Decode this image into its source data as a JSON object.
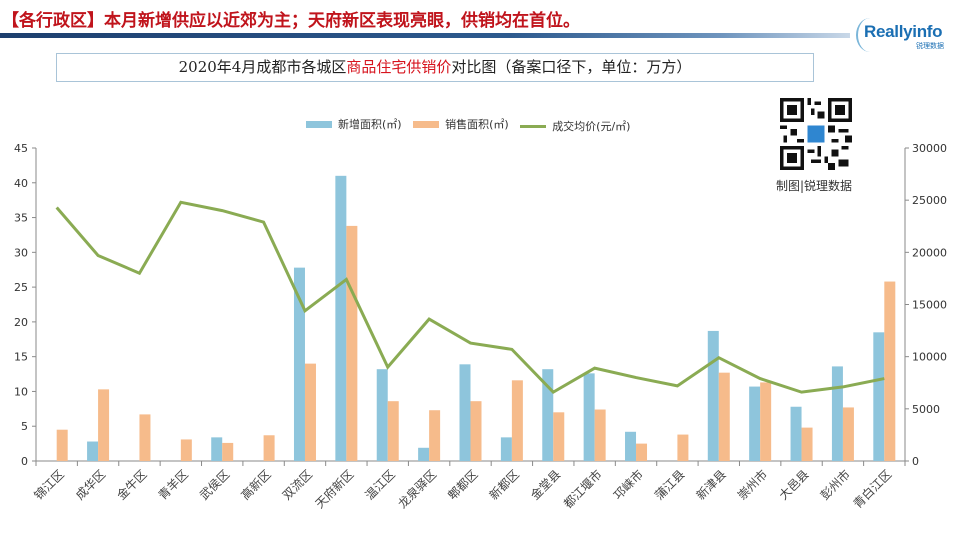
{
  "header": {
    "title": "【各行政区】本月新增供应以近郊为主；天府新区表现亮眼，供销均在首位。",
    "logo_text": "Reallyinfo",
    "logo_subtext": "锐理数据",
    "bar_color": "#1d3f6e",
    "title_color": "#c0141c"
  },
  "chart_title": {
    "prefix": "2020年4月成都市各城区",
    "highlight": "商品住宅供销价",
    "suffix": "对比图（备案口径下，单位：万方）"
  },
  "qr": {
    "caption": "制图|锐理数据"
  },
  "legend": [
    {
      "label": "新增面积(㎡)",
      "color": "#8ec5dc",
      "kind": "bar"
    },
    {
      "label": "销售面积(㎡)",
      "color": "#f6bb8b",
      "kind": "bar"
    },
    {
      "label": "成交均价(元/㎡)",
      "color": "#8aab53",
      "kind": "line"
    }
  ],
  "chart_data": {
    "type": "bar",
    "title": "2020年4月成都市各城区商品住宅供销价对比图（备案口径下，单位：万方）",
    "xlabel": "",
    "ylabel": "",
    "ylim": [
      0,
      45
    ],
    "y2lim": [
      0,
      30000
    ],
    "yticks": [
      0,
      5,
      10,
      15,
      20,
      25,
      30,
      35,
      40,
      45
    ],
    "y2ticks": [
      0,
      5000,
      10000,
      15000,
      20000,
      25000,
      30000
    ],
    "grid": false,
    "legend_position": "top",
    "categories": [
      "锦江区",
      "成华区",
      "金牛区",
      "青羊区",
      "武侯区",
      "高新区",
      "双流区",
      "天府新区",
      "温江区",
      "龙泉驿区",
      "郫都区",
      "新都区",
      "金堂县",
      "都江堰市",
      "邛崃市",
      "蒲江县",
      "新津县",
      "崇州市",
      "大邑县",
      "彭州市",
      "青白江区"
    ],
    "series": [
      {
        "name": "新增面积(㎡)",
        "type": "bar",
        "axis": "left",
        "color": "#8ec5dc",
        "values": [
          0,
          2.8,
          0,
          0,
          3.4,
          0,
          27.8,
          41.0,
          13.2,
          1.9,
          13.9,
          3.4,
          13.2,
          12.6,
          4.2,
          0,
          18.7,
          10.7,
          7.8,
          13.6,
          18.5
        ]
      },
      {
        "name": "销售面积(㎡)",
        "type": "bar",
        "axis": "left",
        "color": "#f6bb8b",
        "values": [
          4.5,
          10.3,
          6.7,
          3.1,
          2.6,
          3.7,
          14.0,
          33.8,
          8.6,
          7.3,
          8.6,
          11.6,
          7.0,
          7.4,
          2.5,
          3.8,
          12.7,
          11.3,
          4.8,
          7.7,
          25.8
        ]
      },
      {
        "name": "成交均价(元/㎡)",
        "type": "line",
        "axis": "right",
        "color": "#8aab53",
        "values": [
          24300,
          19700,
          18000,
          24800,
          24000,
          22900,
          14400,
          17400,
          9000,
          13600,
          11300,
          10700,
          6600,
          8900,
          8000,
          7200,
          9900,
          7900,
          6600,
          7100,
          7900
        ]
      }
    ]
  }
}
